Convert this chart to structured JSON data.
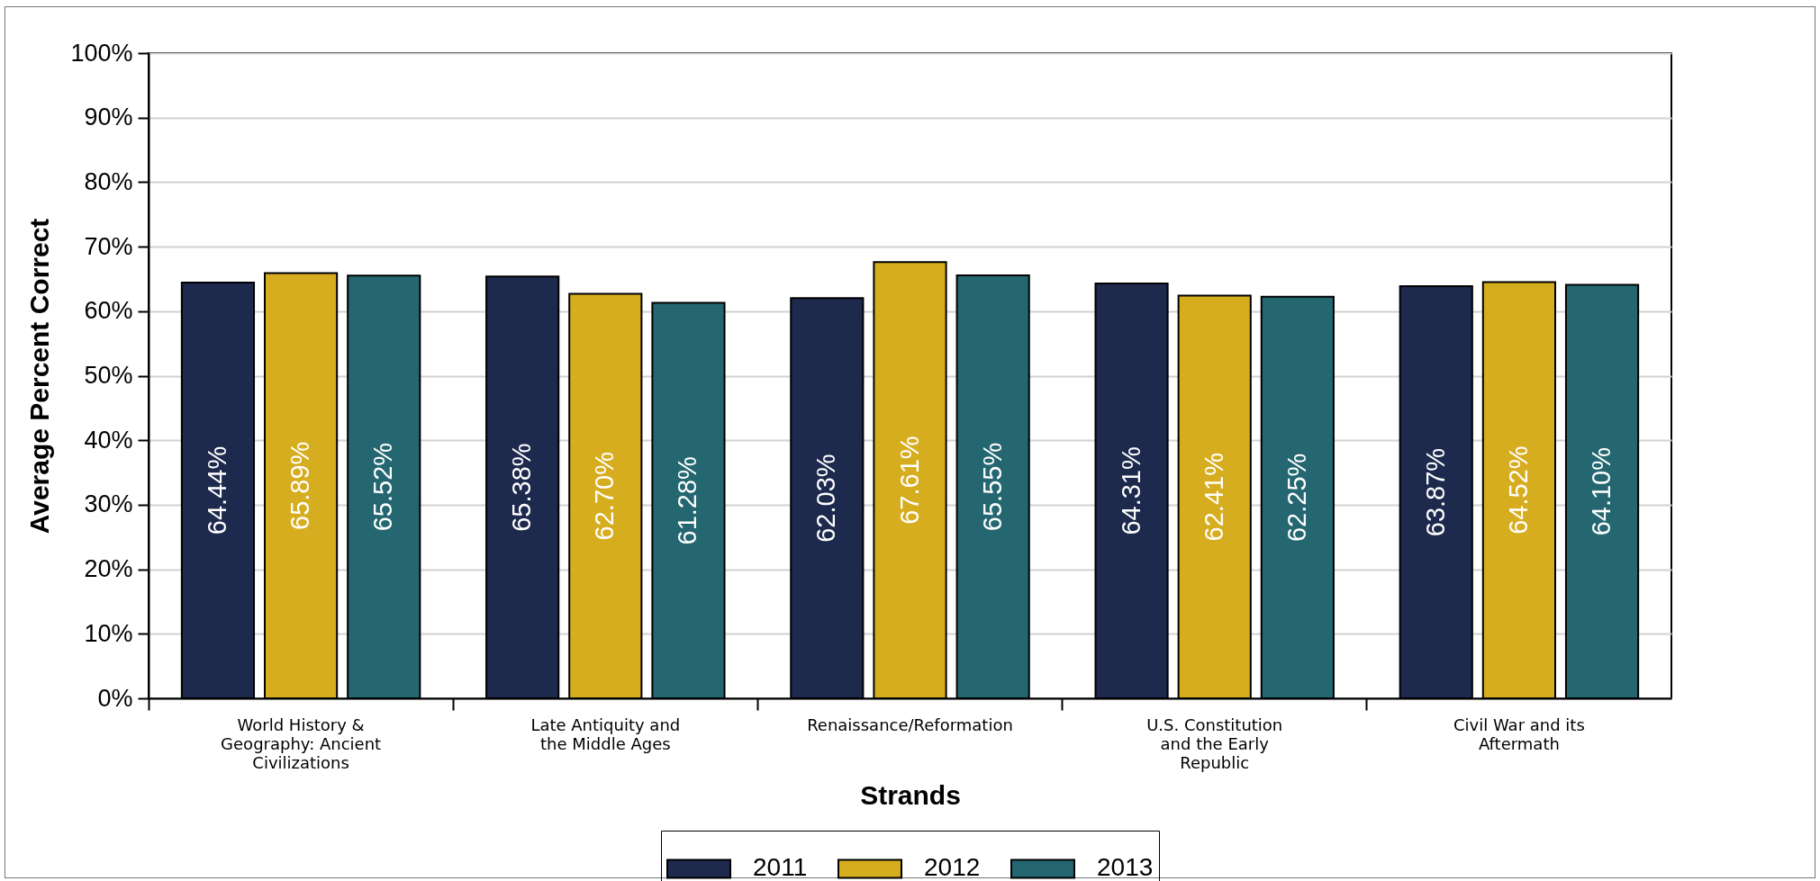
{
  "chart_data": {
    "type": "bar",
    "categories": [
      "World History & Geography: Ancient Civilizations",
      "Late Antiquity and the Middle Ages",
      "Renaissance/Reformation",
      "U.S. Constitution and the Early Republic",
      "Civil War and its Aftermath"
    ],
    "series": [
      {
        "name": "2011",
        "color": "#1d294d",
        "values": [
          64.44,
          65.38,
          62.03,
          64.31,
          63.87
        ],
        "value_labels": [
          "64.44%",
          "65.38%",
          "62.03%",
          "64.31%",
          "63.87%"
        ]
      },
      {
        "name": "2012",
        "color": "#d7ad20",
        "values": [
          65.89,
          62.7,
          67.61,
          62.41,
          64.52
        ],
        "value_labels": [
          "65.89%",
          "62.70%",
          "67.61%",
          "62.41%",
          "64.52%"
        ]
      },
      {
        "name": "2013",
        "color": "#246771",
        "values": [
          65.52,
          61.28,
          65.55,
          62.25,
          64.1
        ],
        "value_labels": [
          "65.52%",
          "61.28%",
          "65.55%",
          "62.25%",
          "64.10%"
        ]
      }
    ],
    "xlabel": "Strands",
    "ylabel": "Average Percent Correct",
    "ylim": [
      0,
      100
    ],
    "yticks": [
      {
        "value": 0,
        "label": "0%"
      },
      {
        "value": 10,
        "label": "10%"
      },
      {
        "value": 20,
        "label": "20%"
      },
      {
        "value": 30,
        "label": "30%"
      },
      {
        "value": 40,
        "label": "40%"
      },
      {
        "value": 50,
        "label": "50%"
      },
      {
        "value": 60,
        "label": "60%"
      },
      {
        "value": 70,
        "label": "70%"
      },
      {
        "value": 80,
        "label": "80%"
      },
      {
        "value": 90,
        "label": "90%"
      },
      {
        "value": 100,
        "label": "100%"
      }
    ],
    "grid": "y",
    "legend": "bottom"
  }
}
